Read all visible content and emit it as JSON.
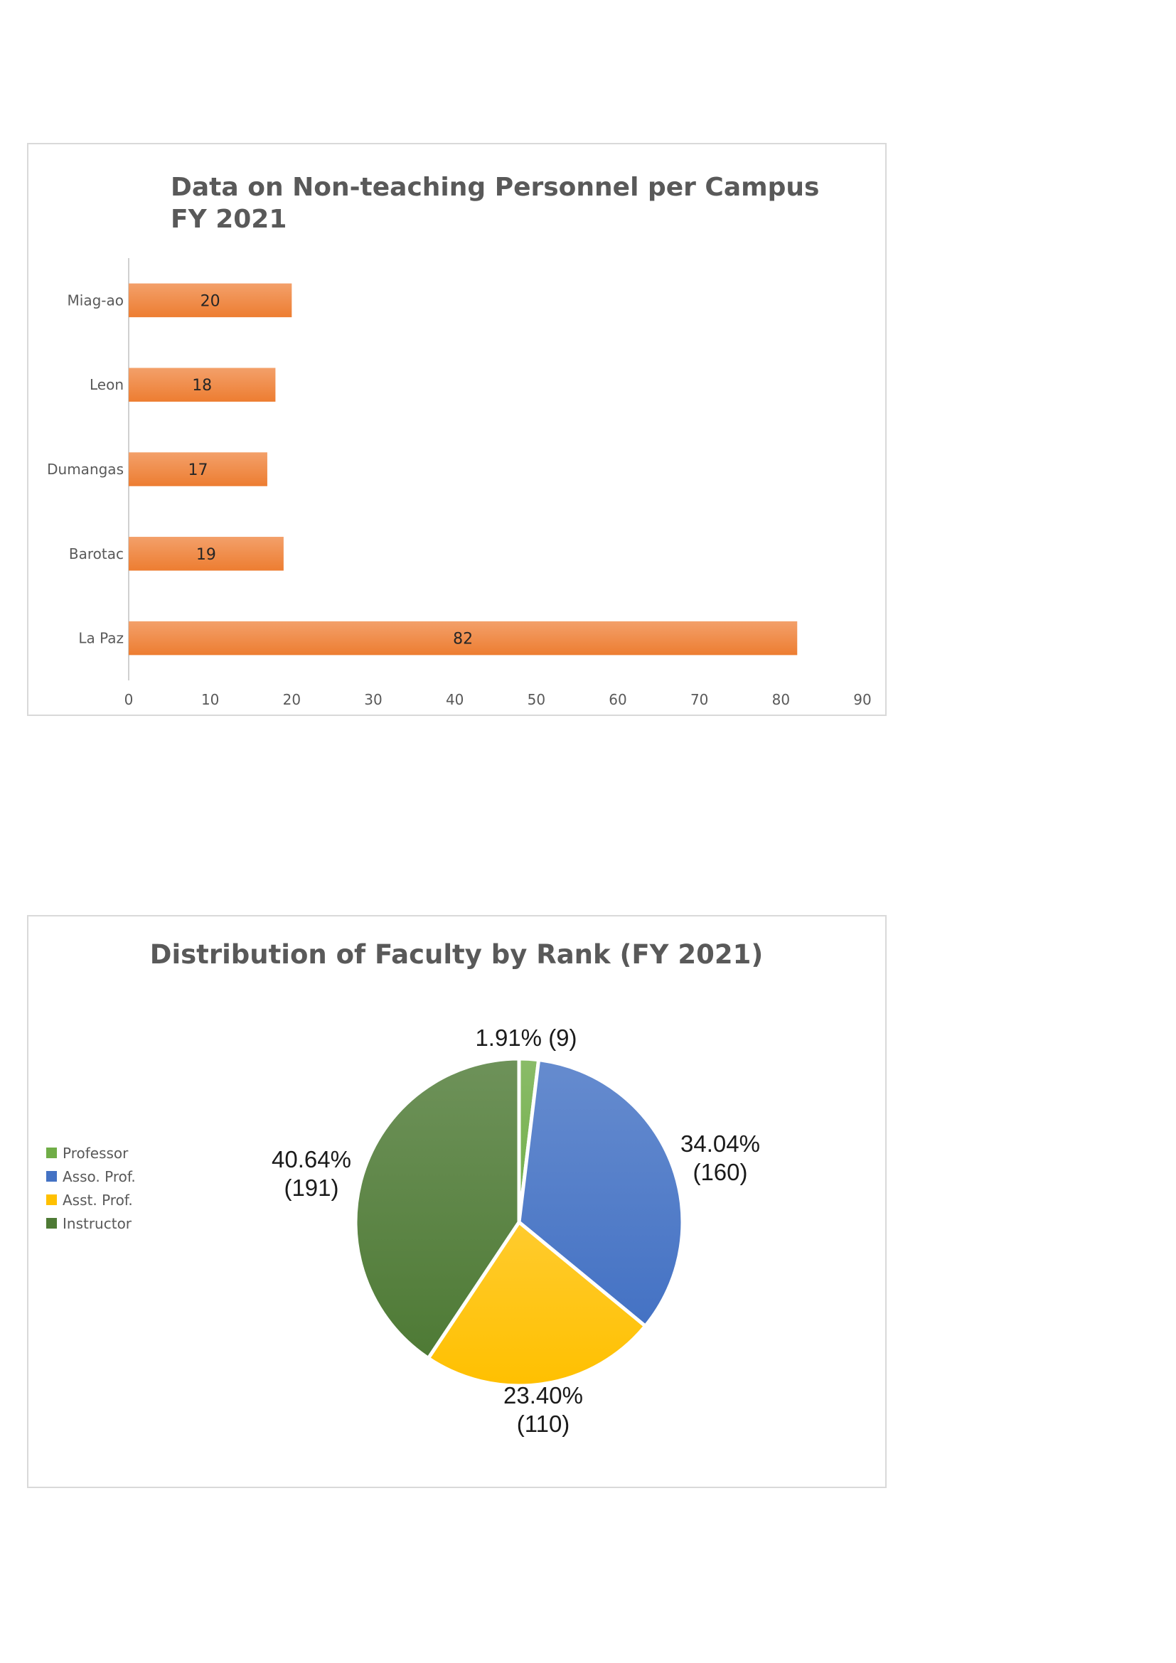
{
  "chart_data": [
    {
      "type": "bar",
      "orientation": "horizontal",
      "title_lines": [
        "Data on Non-teaching Personnel per Campus",
        "FY 2021"
      ],
      "categories": [
        "Miag-ao",
        "Leon",
        "Dumangas",
        "Barotac",
        "La Paz"
      ],
      "values": [
        20,
        18,
        17,
        19,
        82
      ],
      "value_labels": [
        "20",
        "18",
        "17",
        "19",
        "82"
      ],
      "xlim": [
        0,
        90
      ],
      "xticks": [
        "0",
        "10",
        "20",
        "30",
        "40",
        "50",
        "60",
        "70",
        "80",
        "90"
      ],
      "grid": false,
      "legend": "none",
      "colors": {
        "bar": "#ed7d31",
        "bar_light": "#f3a06a"
      }
    },
    {
      "type": "pie",
      "title": "Distribution of Faculty by Rank (FY 2021)",
      "categories": [
        "Professor",
        "Asso. Prof.",
        "Asst. Prof.",
        "Instructor"
      ],
      "values": [
        9,
        160,
        110,
        191
      ],
      "labels": [
        [
          "1.91% (9)"
        ],
        [
          "34.04%",
          "(160)"
        ],
        [
          "23.40%",
          "(110)"
        ],
        [
          "40.64%",
          "(191)"
        ]
      ],
      "legend": "left",
      "colors": [
        "#70ad47",
        "#4472c4",
        "#ffc000",
        "#4e7a35"
      ]
    }
  ]
}
